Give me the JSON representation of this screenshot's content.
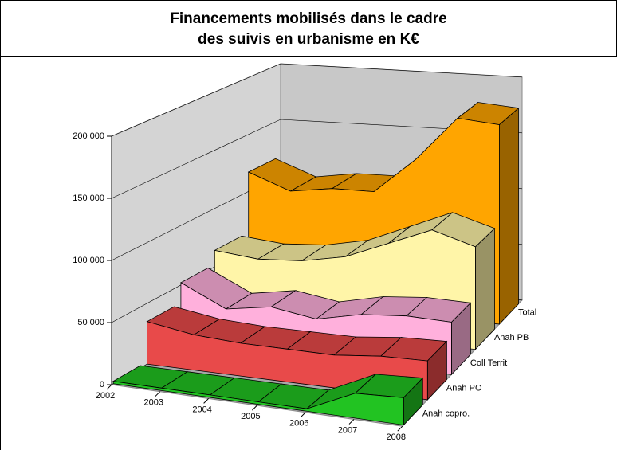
{
  "chart_data": {
    "type": "area3d",
    "title": [
      "Financements mobilisés dans le cadre",
      "des suivis en urbanisme en K€"
    ],
    "categories": [
      "2002",
      "2003",
      "2004",
      "2005",
      "2006",
      "2007",
      "2008"
    ],
    "series": [
      {
        "name": "Anah copro.",
        "color": "#22c322",
        "values": [
          2000,
          2000,
          2000,
          2000,
          2000,
          20000,
          22000
        ]
      },
      {
        "name": "Anah PO",
        "color": "#e84a4a",
        "values": [
          35000,
          29000,
          27000,
          27000,
          27000,
          31000,
          32000
        ]
      },
      {
        "name": "Coll Territ",
        "color": "#ffb0dc",
        "values": [
          52000,
          34000,
          40000,
          34000,
          42000,
          45000,
          44000
        ]
      },
      {
        "name": "Anah PB",
        "color": "#fff5a8",
        "values": [
          64000,
          60000,
          62000,
          69000,
          84000,
          99000,
          88000
        ]
      },
      {
        "name": "Total",
        "color": "#ffa500",
        "values": [
          117000,
          103000,
          108000,
          108000,
          139000,
          178000,
          175000
        ]
      }
    ],
    "ylim": [
      0,
      200000
    ],
    "yticks": [
      0,
      {
        "value": 50000,
        "label": "50 000"
      },
      {
        "value": 100000,
        "label": "100 000"
      },
      {
        "value": 150000,
        "label": "150 000"
      },
      {
        "value": 200000,
        "label": "200 000"
      }
    ],
    "grid": true
  }
}
